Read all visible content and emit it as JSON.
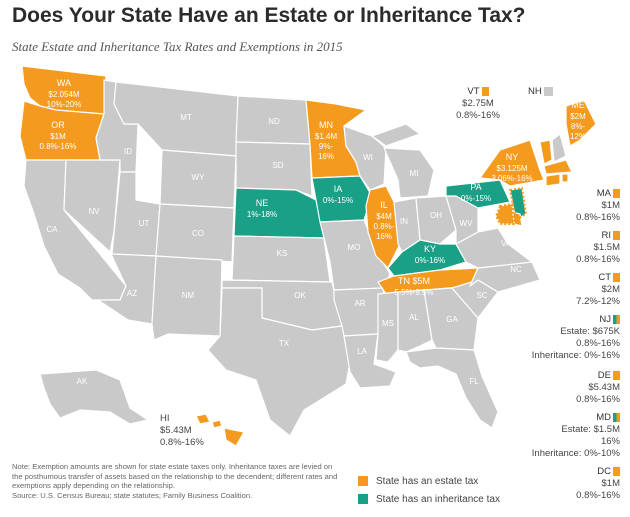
{
  "title": "Does Your State Have an Estate or Inheritance Tax?",
  "subtitle": "State Estate and Inheritance Tax Rates and Exemptions in 2015",
  "colors": {
    "estate": "#F39A1F",
    "inheritance": "#1AA087",
    "none": "#C9C9C9",
    "border": "#ffffff"
  },
  "map_states": {
    "WA": {
      "name": "WA",
      "line1": "$2.054M",
      "line2": "10%-20%",
      "type": "estate"
    },
    "OR": {
      "name": "OR",
      "line1": "$1M",
      "line2": "0.8%-16%",
      "type": "estate"
    },
    "MN": {
      "name": "MN",
      "line1": "$1.4M",
      "line2": "9%-",
      "line3": "16%",
      "type": "estate"
    },
    "NE": {
      "name": "NE",
      "line1": "1%-18%",
      "type": "inheritance"
    },
    "IA": {
      "name": "IA",
      "line1": "0%-15%",
      "type": "inheritance"
    },
    "IL": {
      "name": "IL",
      "line1": "$4M",
      "line2": "0.8%-",
      "line3": "16%",
      "type": "estate"
    },
    "KY": {
      "name": "KY",
      "line1": "0%-16%",
      "type": "inheritance"
    },
    "TN": {
      "name": "TN $5M",
      "line1": "5.5%-9.5%",
      "type": "estate"
    },
    "PA": {
      "name": "PA",
      "line1": "0%-15%",
      "type": "inheritance"
    },
    "NY": {
      "name": "NY",
      "line1": "$3.125M",
      "line2": "3.06%-16%",
      "type": "estate"
    },
    "ME": {
      "name": "ME",
      "line1": "$2M",
      "line2": "8%-",
      "line3": "12%",
      "type": "estate"
    }
  },
  "gray_labels": [
    "MT",
    "ND",
    "SD",
    "WY",
    "ID",
    "NV",
    "UT",
    "CO",
    "CA",
    "AZ",
    "NM",
    "KS",
    "OK",
    "TX",
    "MO",
    "AR",
    "LA",
    "MS",
    "AL",
    "GA",
    "SC",
    "NC",
    "VA",
    "WV",
    "OH",
    "IN",
    "MI",
    "WI",
    "FL",
    "AK"
  ],
  "callouts": {
    "VT": {
      "code": "VT",
      "lines": [
        "$2.75M",
        "0.8%-16%"
      ]
    },
    "NH": {
      "code": "NH"
    },
    "HI": {
      "code": "HI",
      "lines": [
        "$5.43M",
        "0.8%-16%"
      ]
    }
  },
  "side_states": [
    {
      "code": "MA",
      "lines": [
        "$1M",
        "0.8%-16%"
      ],
      "type": "estate"
    },
    {
      "code": "RI",
      "lines": [
        "$1.5M",
        "0.8%-16%"
      ],
      "type": "estate"
    },
    {
      "code": "CT",
      "lines": [
        "$2M",
        "7.2%-12%"
      ],
      "type": "estate"
    },
    {
      "code": "NJ",
      "lines": [
        "Estate: $675K",
        "0.8%-16%",
        "Inheritance: 0%-16%"
      ],
      "type": "both"
    },
    {
      "code": "DE",
      "lines": [
        "$5.43M",
        "0.8%-16%"
      ],
      "type": "estate"
    },
    {
      "code": "MD",
      "lines": [
        "Estate: $1.5M",
        "16%",
        "Inheritance: 0%-10%"
      ],
      "type": "both"
    },
    {
      "code": "DC",
      "lines": [
        "$1M",
        "0.8%-16%"
      ],
      "type": "estate"
    }
  ],
  "note": "Note: Exemption amounts are shown for state estate taxes only. Inheritance taxes are levied on the posthumous transfer of assets based on the relationship to the decendent; different rates and exemptions apply depending on the relationship.",
  "source": "Source: U.S. Census Bureau; state statutes; Family Business Coalition.",
  "legend": {
    "estate": "State has an estate tax",
    "inheritance": "State has an inheritance tax"
  }
}
